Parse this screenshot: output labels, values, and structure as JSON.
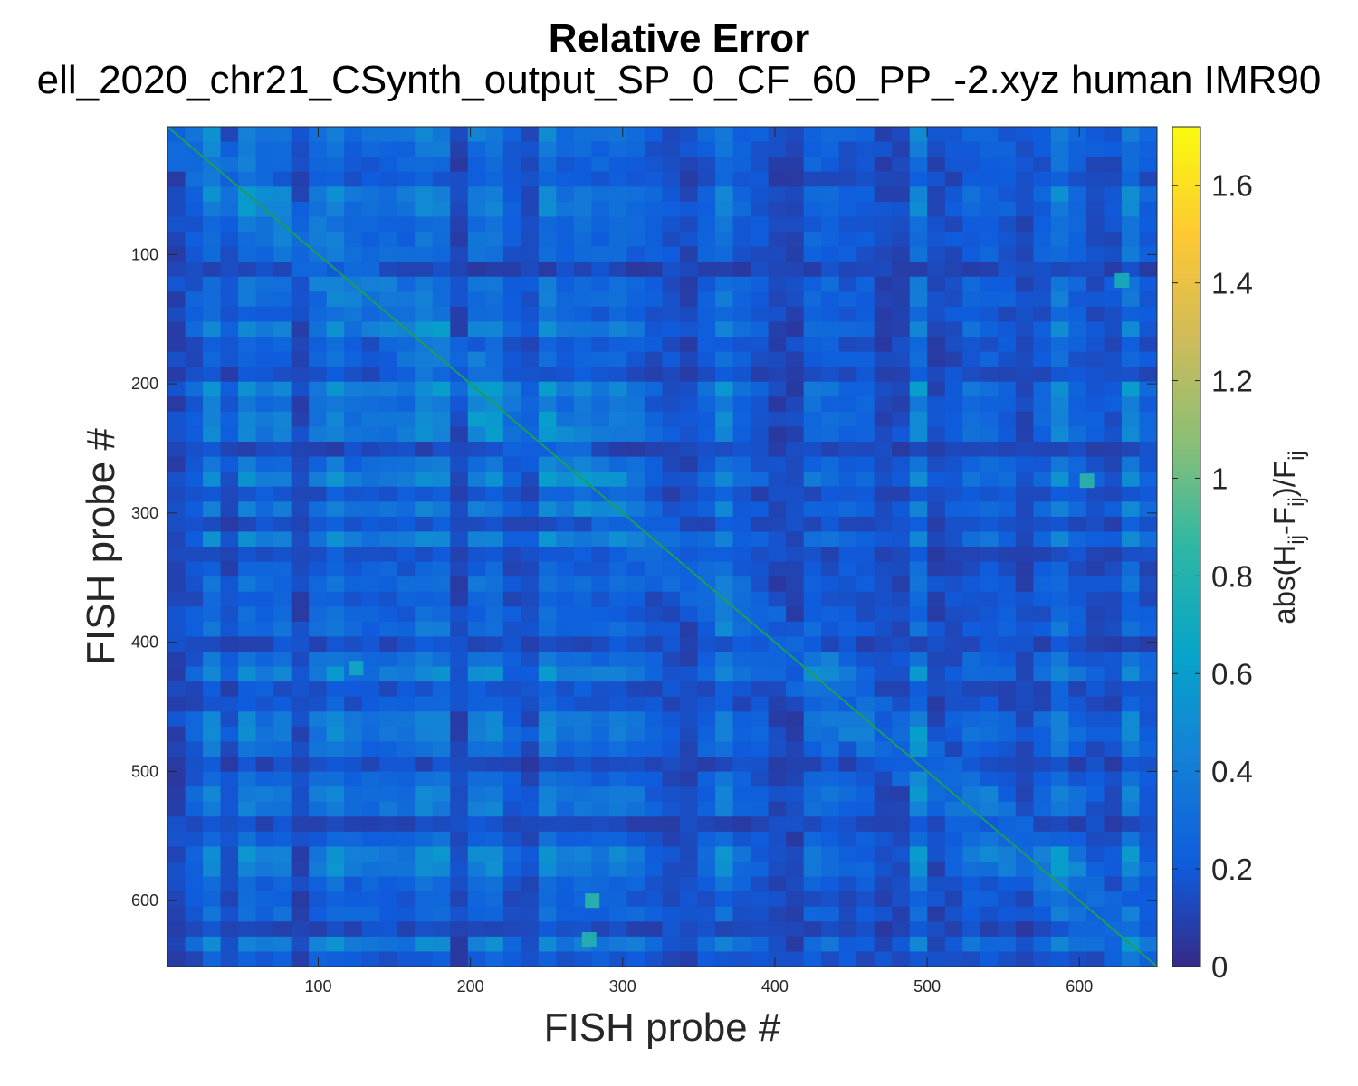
{
  "chart_data": {
    "type": "heatmap",
    "title": "Relative Error",
    "subtitle": "ell_2020_chr21_CSynth_output_SP_0_CF_60_PP_-2.xyz human IMR90",
    "xlabel": "FISH probe #",
    "ylabel": "FISH probe #",
    "x_ticks": [
      100,
      200,
      300,
      400,
      500,
      600
    ],
    "y_ticks": [
      100,
      200,
      300,
      400,
      500,
      600
    ],
    "xlim": [
      1,
      651
    ],
    "ylim": [
      1,
      651
    ],
    "y_direction": "reversed",
    "matrix_size": 651,
    "colorbar": {
      "label": "abs(H_ij-F_ij)/F_ij",
      "label_parts": [
        "abs(H",
        "ij",
        "-F",
        "ij",
        ")/F",
        "ij"
      ],
      "colormap": "parula",
      "ticks": [
        0,
        0.2,
        0.4,
        0.6,
        0.8,
        1,
        1.2,
        1.4,
        1.6
      ],
      "tick_labels": [
        "0",
        "0.2",
        "0.4",
        "0.6",
        "0.8",
        "1",
        "1.2",
        "1.4",
        "1.6"
      ],
      "lim": [
        0,
        1.72
      ]
    },
    "diagonal_value": 0,
    "typical_range": [
      0.05,
      0.6
    ],
    "hotspots": [
      {
        "row": 420,
        "col": 125,
        "value": 0.7
      },
      {
        "row": 630,
        "col": 278,
        "value": 0.8
      },
      {
        "row": 275,
        "col": 605,
        "value": 0.85
      },
      {
        "row": 120,
        "col": 628,
        "value": 0.75
      },
      {
        "row": 600,
        "col": 280,
        "value": 0.85
      }
    ],
    "colors": {
      "low": "#352a87",
      "mid_low": "#2d58e2",
      "mid": "#12bee0",
      "high": "#f9fb0e"
    }
  }
}
